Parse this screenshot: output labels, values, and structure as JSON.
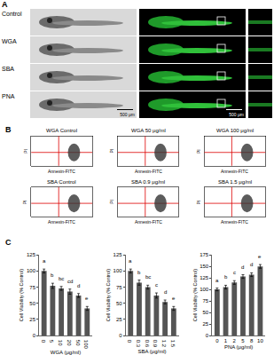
{
  "panels": {
    "A": {
      "label": "A",
      "rows": [
        "Control",
        "WGA",
        "SBA",
        "PNA"
      ],
      "scale_bar": "500 μm"
    },
    "B": {
      "label": "B",
      "x_label": "Annexin-FITC",
      "y_label": "PI",
      "tick_labels": false,
      "plots": [
        [
          "WGA Control",
          "WGA 50 μg/ml",
          "WGA 100 μg/ml"
        ],
        [
          "SBA Control",
          "SBA 0.9 μg/ml",
          "SBA 1.5 μg/ml"
        ]
      ]
    },
    "C": {
      "label": "C"
    }
  },
  "chart_data": [
    {
      "type": "bar",
      "categories": [
        "0",
        "5",
        "10",
        "20",
        "50",
        "100"
      ],
      "values": [
        100,
        77,
        73,
        68,
        62,
        42
      ],
      "errors": [
        3,
        4,
        3,
        4,
        3,
        3
      ],
      "annotations": [
        "a",
        "b",
        "bc",
        "cd",
        "d",
        "e"
      ],
      "x_label": "WGA (μg/ml)",
      "y_label": "Cell Viability (% Control)",
      "color": "#555555",
      "ylim": [
        0,
        125
      ],
      "yticks": [
        0,
        25,
        50,
        75,
        100,
        125
      ]
    },
    {
      "type": "bar",
      "categories": [
        "0",
        "0.3",
        "0.6",
        "0.9",
        "1.2",
        "1.5"
      ],
      "values": [
        100,
        82,
        75,
        62,
        52,
        42
      ],
      "errors": [
        3,
        4,
        3,
        4,
        3,
        3
      ],
      "annotations": [
        "a",
        "b",
        "bc",
        "c",
        "d",
        "e"
      ],
      "x_label": "SBA (μg/ml)",
      "y_label": "Cell Viability (% Control)",
      "color": "#555555",
      "ylim": [
        0,
        125
      ],
      "yticks": [
        0,
        25,
        50,
        75,
        100,
        125
      ]
    },
    {
      "type": "bar",
      "categories": [
        "0",
        "1",
        "2",
        "5",
        "8",
        "10"
      ],
      "values": [
        100,
        105,
        115,
        128,
        132,
        150
      ],
      "errors": [
        3,
        4,
        4,
        4,
        4,
        4
      ],
      "annotations": [
        "a",
        "b",
        "c",
        "d",
        "d",
        "e"
      ],
      "x_label": "PNA (μg/ml)",
      "y_label": "Cell Viability (% Control)",
      "color": "#555555",
      "ylim": [
        0,
        175
      ],
      "yticks": [
        0,
        25,
        50,
        75,
        100,
        125,
        150,
        175
      ]
    }
  ]
}
